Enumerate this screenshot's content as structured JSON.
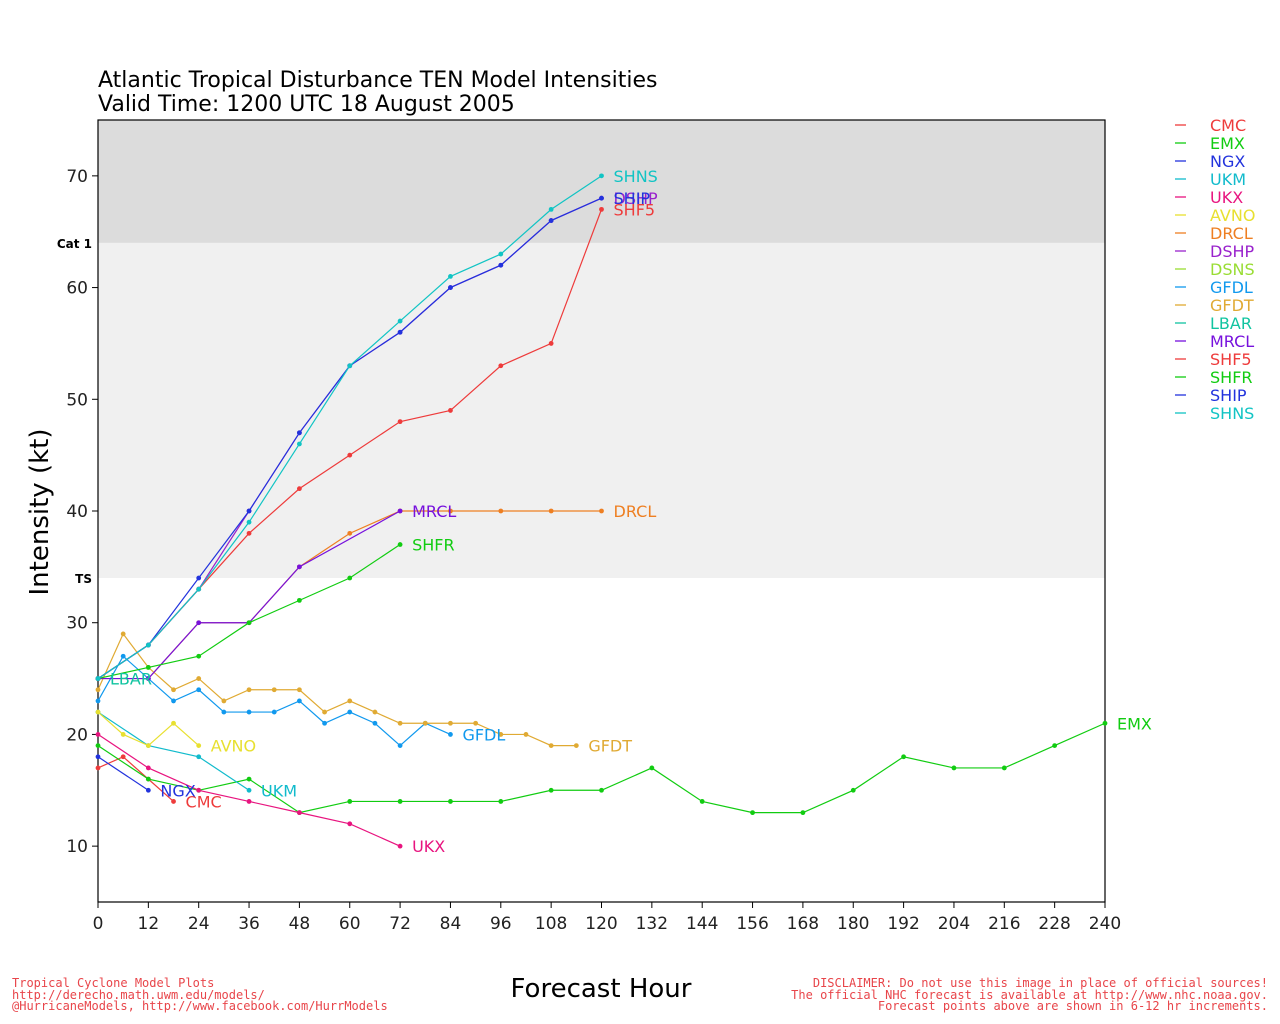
{
  "chart_data": {
    "type": "line",
    "title": "Atlantic Tropical Disturbance TEN Model Intensities",
    "subtitle": "Valid Time: 1200 UTC 18 August 2005",
    "xlabel": "Forecast Hour",
    "ylabel": "Intensity (kt)",
    "xlim": [
      0,
      240
    ],
    "ylim": [
      5,
      75
    ],
    "x_ticks": [
      0,
      12,
      24,
      36,
      48,
      60,
      72,
      84,
      96,
      108,
      120,
      132,
      144,
      156,
      168,
      180,
      192,
      204,
      216,
      228,
      240
    ],
    "y_ticks": [
      10,
      20,
      30,
      40,
      50,
      60,
      70
    ],
    "bands": [
      {
        "label": "TS",
        "from": 34,
        "to": 64,
        "color": "#f0f0f0"
      },
      {
        "label": "Cat 1",
        "from": 64,
        "to": 75,
        "color": "#dcdcdc"
      }
    ],
    "legend_position": "right, outside plot",
    "series": [
      {
        "name": "CMC",
        "color": "#ee3b3b",
        "x": [
          0,
          6,
          12,
          18
        ],
        "y": [
          17,
          18,
          16,
          14
        ]
      },
      {
        "name": "EMX",
        "color": "#11cc11",
        "x": [
          0,
          12,
          24,
          36,
          48,
          60,
          72,
          84,
          96,
          108,
          120,
          132,
          144,
          156,
          168,
          180,
          192,
          204,
          216,
          228,
          240
        ],
        "y": [
          19,
          16,
          15,
          16,
          13,
          14,
          14,
          14,
          14,
          15,
          15,
          17,
          14,
          13,
          13,
          15,
          18,
          17,
          17,
          19,
          21
        ]
      },
      {
        "name": "NGX",
        "color": "#2233dd",
        "x": [
          0,
          12
        ],
        "y": [
          18,
          15
        ]
      },
      {
        "name": "UKM",
        "color": "#11bbcc",
        "x": [
          0,
          12,
          24,
          36
        ],
        "y": [
          22,
          19,
          18,
          15
        ]
      },
      {
        "name": "UKX",
        "color": "#e8147f",
        "x": [
          0,
          12,
          24,
          36,
          48,
          60,
          72
        ],
        "y": [
          20,
          17,
          15,
          14,
          13,
          12,
          10
        ]
      },
      {
        "name": "AVNO",
        "color": "#e8e030",
        "x": [
          0,
          6,
          12,
          18,
          24
        ],
        "y": [
          22,
          20,
          19,
          21,
          19
        ]
      },
      {
        "name": "DRCL",
        "color": "#ee7f22",
        "x": [
          0,
          12,
          24,
          36,
          48,
          60,
          72,
          84,
          96,
          108,
          120
        ],
        "y": [
          25,
          25,
          30,
          30,
          35,
          38,
          40,
          40,
          40,
          40,
          40
        ]
      },
      {
        "name": "DSHP",
        "color": "#9922cc",
        "x": [
          0,
          12,
          24,
          36,
          48,
          60,
          72,
          84,
          96,
          108,
          120
        ],
        "y": [
          25,
          28,
          33,
          40,
          47,
          53,
          56,
          60,
          62,
          66,
          68
        ]
      },
      {
        "name": "DSNS",
        "color": "#99dd33",
        "x": [],
        "y": []
      },
      {
        "name": "GFDL",
        "color": "#1199ee",
        "x": [
          0,
          6,
          12,
          18,
          24,
          30,
          36,
          42,
          48,
          54,
          60,
          66,
          72,
          78,
          84
        ],
        "y": [
          23,
          27,
          25,
          23,
          24,
          22,
          22,
          22,
          23,
          21,
          22,
          21,
          19,
          21,
          20
        ]
      },
      {
        "name": "GFDT",
        "color": "#e0aa33",
        "x": [
          0,
          6,
          12,
          18,
          24,
          30,
          36,
          42,
          48,
          54,
          60,
          66,
          72,
          78,
          84,
          90,
          96,
          102,
          108,
          114
        ],
        "y": [
          24,
          29,
          26,
          24,
          25,
          23,
          24,
          24,
          24,
          22,
          23,
          22,
          21,
          21,
          21,
          21,
          20,
          20,
          19,
          19
        ]
      },
      {
        "name": "LBAR",
        "color": "#11c4a0",
        "x": [
          0
        ],
        "y": [
          25
        ]
      },
      {
        "name": "MRCL",
        "color": "#7711dd",
        "x": [
          0,
          12,
          24,
          36,
          48,
          72
        ],
        "y": [
          25,
          25,
          30,
          30,
          35,
          40
        ]
      },
      {
        "name": "SHF5",
        "color": "#ee3b3b",
        "x": [
          0,
          12,
          24,
          36,
          48,
          60,
          72,
          84,
          96,
          108,
          120
        ],
        "y": [
          25,
          28,
          33,
          38,
          42,
          45,
          48,
          49,
          53,
          55,
          67
        ]
      },
      {
        "name": "SHFR",
        "color": "#11cc11",
        "x": [
          0,
          12,
          24,
          36,
          48,
          60,
          72
        ],
        "y": [
          25,
          26,
          27,
          30,
          32,
          34,
          37
        ]
      },
      {
        "name": "SHIP",
        "color": "#2233dd",
        "x": [
          0,
          12,
          24,
          36,
          48,
          60,
          72,
          84,
          96,
          108,
          120
        ],
        "y": [
          25,
          28,
          34,
          40,
          47,
          53,
          56,
          60,
          62,
          66,
          68
        ]
      },
      {
        "name": "SHNS",
        "color": "#11c4c4",
        "x": [
          0,
          12,
          24,
          36,
          48,
          60,
          72,
          84,
          96,
          108,
          120
        ],
        "y": [
          25,
          28,
          33,
          39,
          46,
          53,
          57,
          61,
          63,
          67,
          70
        ]
      }
    ]
  },
  "footer": {
    "left": [
      "Tropical Cyclone Model Plots",
      "http://derecho.math.uwm.edu/models/",
      "@HurricaneModels, http://www.facebook.com/HurrModels"
    ],
    "right": [
      "DISCLAIMER: Do not use this image in place of official sources!",
      "The official NHC forecast is available at http://www.nhc.noaa.gov.",
      "Forecast points above are shown in 6-12 hr increments."
    ]
  }
}
